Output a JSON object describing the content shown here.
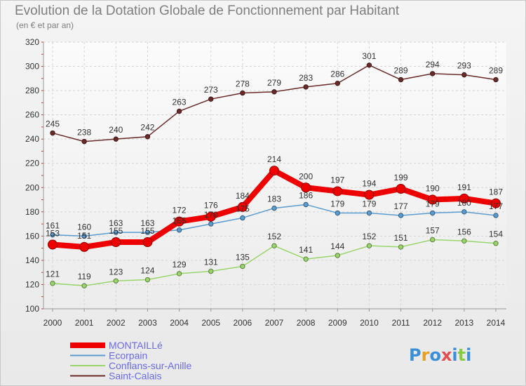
{
  "chart_data": {
    "type": "line",
    "title": "Evolution de la Dotation Globale de Fonctionnement par Habitant",
    "subtitle": "(en € et par an)",
    "xlabel": "",
    "ylabel": "",
    "ylim": [
      100,
      320
    ],
    "yticks": [
      100,
      120,
      140,
      160,
      180,
      200,
      220,
      240,
      260,
      280,
      300,
      320
    ],
    "x": [
      "2000",
      "2001",
      "2002",
      "2003",
      "2004",
      "2005",
      "2006",
      "2007",
      "2008",
      "2009",
      "2010",
      "2011",
      "2012",
      "2013",
      "2014"
    ],
    "grid": true,
    "legend_position": "bottom-left",
    "series": [
      {
        "name": "Saint-Calais",
        "color": "#6b2a2a",
        "values": [
          245,
          238,
          240,
          242,
          263,
          273,
          278,
          279,
          283,
          286,
          301,
          289,
          294,
          293,
          289
        ]
      },
      {
        "name": "Ecorpain",
        "color": "#5a9bd0",
        "values": [
          161,
          160,
          163,
          163,
          165,
          170,
          175,
          183,
          186,
          179,
          179,
          177,
          179,
          180,
          177
        ]
      },
      {
        "name": "Conflans-sur-Anille",
        "color": "#99d56b",
        "values": [
          121,
          119,
          123,
          124,
          129,
          131,
          135,
          152,
          141,
          144,
          152,
          151,
          157,
          156,
          154
        ]
      },
      {
        "name": "MONTAILLé",
        "color": "#ee0000",
        "values": [
          153,
          151,
          155,
          155,
          172,
          176,
          184,
          214,
          200,
          197,
          194,
          199,
          190,
          191,
          187
        ]
      }
    ]
  },
  "legend": {
    "items": [
      {
        "label": "MONTAILLé",
        "color": "#ee0000"
      },
      {
        "label": "Ecorpain",
        "color": "#5a9bd0"
      },
      {
        "label": "Conflans-sur-Anille",
        "color": "#99d56b"
      },
      {
        "label": "Saint-Calais",
        "color": "#6b2a2a"
      }
    ]
  },
  "brand": {
    "text": "Proxiti"
  }
}
